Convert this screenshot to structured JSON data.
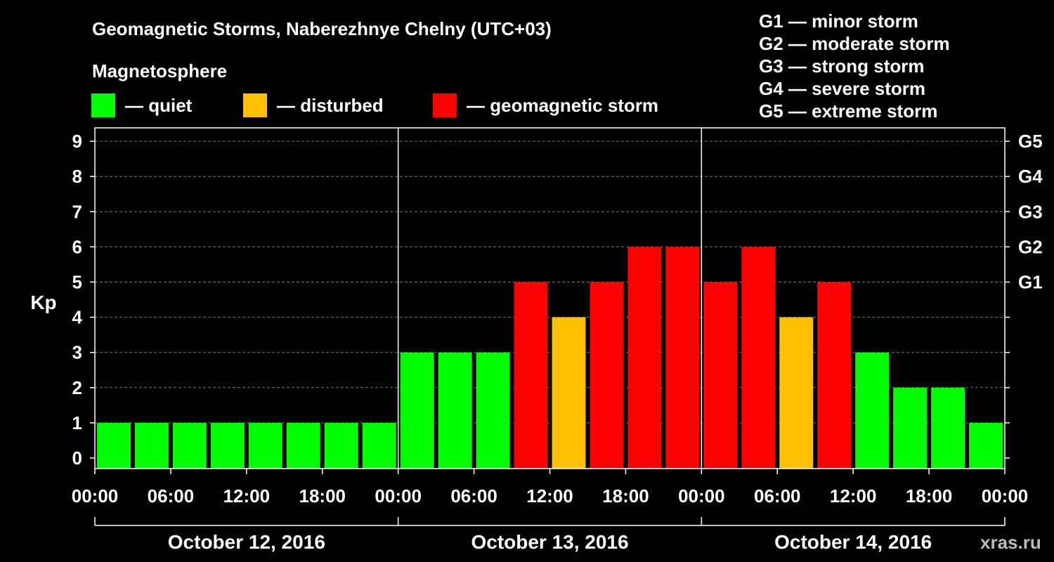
{
  "header": {
    "title": "Geomagnetic Storms, Naberezhnye Chelny (UTC+03)",
    "subtitle": "Magnetosphere",
    "legend": [
      {
        "label": "— quiet",
        "color": "#00ff00"
      },
      {
        "label": "— disturbed",
        "color": "#ffc000"
      },
      {
        "label": "— geomagnetic storm",
        "color": "#ff0000"
      }
    ],
    "g_scale": [
      "G1 — minor storm",
      "G2 — moderate storm",
      "G3 — strong storm",
      "G4 — severe storm",
      "G5 — extreme storm"
    ]
  },
  "watermark": "xras.ru",
  "chart_data": {
    "type": "bar",
    "title": "Geomagnetic Storms, Naberezhnye Chelny (UTC+03)",
    "ylabel": "Kp",
    "ylim": [
      0,
      9
    ],
    "y_ticks": [
      "0",
      "1",
      "2",
      "3",
      "4",
      "5",
      "6",
      "7",
      "8",
      "9"
    ],
    "right_ticks": [
      {
        "kp": 5,
        "label": "G1"
      },
      {
        "kp": 6,
        "label": "G2"
      },
      {
        "kp": 7,
        "label": "G3"
      },
      {
        "kp": 8,
        "label": "G4"
      },
      {
        "kp": 9,
        "label": "G5"
      }
    ],
    "x_tick_labels": [
      "00:00",
      "06:00",
      "12:00",
      "18:00",
      "00:00",
      "06:00",
      "12:00",
      "18:00",
      "00:00",
      "06:00",
      "12:00",
      "18:00",
      "00:00"
    ],
    "days": [
      "October 12, 2016",
      "October 13, 2016",
      "October 14, 2016"
    ],
    "interval_hours": 3,
    "values": [
      1,
      1,
      1,
      1,
      1,
      1,
      1,
      1,
      3,
      3,
      3,
      5,
      4,
      5,
      6,
      6,
      5,
      6,
      4,
      5,
      3,
      2,
      2,
      1
    ],
    "levels": [
      "quiet",
      "quiet",
      "quiet",
      "quiet",
      "quiet",
      "quiet",
      "quiet",
      "quiet",
      "quiet",
      "quiet",
      "quiet",
      "storm",
      "disturbed",
      "storm",
      "storm",
      "storm",
      "storm",
      "storm",
      "disturbed",
      "storm",
      "quiet",
      "quiet",
      "quiet",
      "quiet"
    ],
    "colors": {
      "quiet": "#00ff00",
      "disturbed": "#ffc000",
      "storm": "#ff0000"
    },
    "grid": true
  }
}
